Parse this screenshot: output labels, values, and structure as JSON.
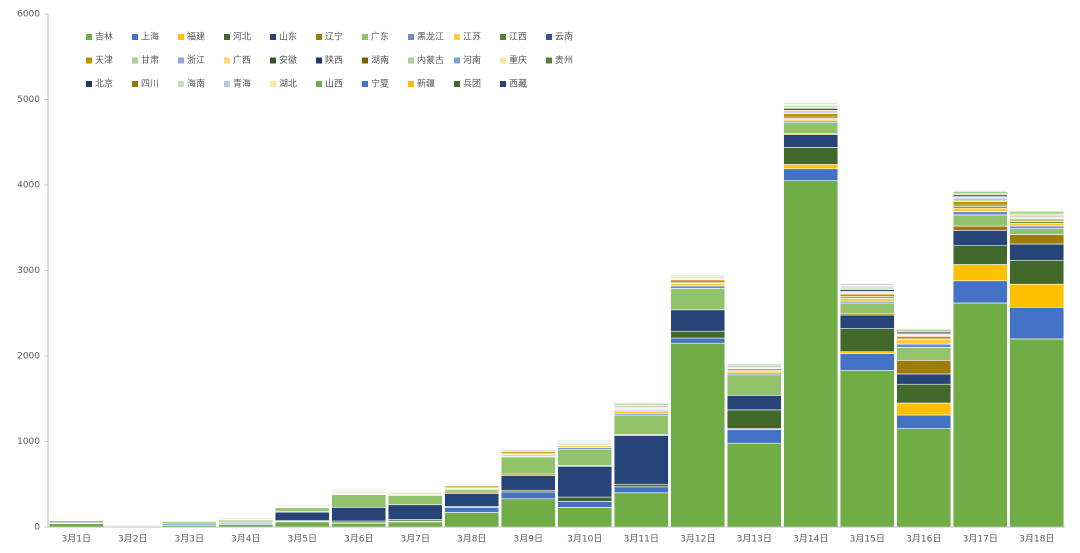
{
  "chart_data": {
    "type": "stacked_bar",
    "categories": [
      "3月1日",
      "3月2日",
      "3月3日",
      "3月4日",
      "3月5日",
      "3月6日",
      "3月7日",
      "3月8日",
      "3月9日",
      "3月10日",
      "3月11日",
      "3月12日",
      "3月13日",
      "3月14日",
      "3月15日",
      "3月16日",
      "3月17日",
      "3月18日"
    ],
    "ylim": [
      0,
      6000
    ],
    "yticks": [
      0,
      1000,
      2000,
      3000,
      4000,
      5000,
      6000
    ],
    "grid": false,
    "series": [
      {
        "name": "吉林",
        "color": "#70ad47",
        "values": [
          40,
          5,
          20,
          30,
          60,
          40,
          60,
          170,
          330,
          230,
          400,
          2150,
          980,
          4050,
          1830,
          1150,
          2620,
          2200
        ]
      },
      {
        "name": "上海",
        "color": "#4472c4",
        "values": [
          5,
          3,
          15,
          10,
          5,
          10,
          10,
          60,
          80,
          70,
          70,
          60,
          160,
          140,
          200,
          160,
          260,
          370
        ]
      },
      {
        "name": "福建",
        "color": "#ffc000",
        "values": [
          0,
          0,
          0,
          0,
          0,
          0,
          0,
          0,
          0,
          0,
          0,
          0,
          10,
          50,
          20,
          140,
          190,
          270
        ]
      },
      {
        "name": "河北",
        "color": "#43682b",
        "values": [
          0,
          0,
          0,
          10,
          10,
          20,
          20,
          10,
          20,
          50,
          30,
          80,
          220,
          200,
          270,
          220,
          220,
          280
        ]
      },
      {
        "name": "山东",
        "color": "#264478",
        "values": [
          10,
          0,
          10,
          10,
          100,
          160,
          170,
          150,
          170,
          360,
          570,
          250,
          170,
          150,
          160,
          120,
          180,
          190
        ]
      },
      {
        "name": "辽宁",
        "color": "#9e7c0c",
        "values": [
          0,
          0,
          0,
          0,
          10,
          0,
          0,
          20,
          20,
          10,
          10,
          0,
          0,
          10,
          20,
          160,
          50,
          110
        ]
      },
      {
        "name": "广东",
        "color": "#92c36b",
        "values": [
          20,
          10,
          20,
          20,
          40,
          150,
          110,
          30,
          200,
          190,
          230,
          250,
          240,
          130,
          120,
          150,
          130,
          70
        ]
      },
      {
        "name": "黑龙江",
        "color": "#698ed0",
        "values": [
          0,
          0,
          0,
          0,
          0,
          5,
          5,
          5,
          10,
          20,
          20,
          30,
          20,
          20,
          20,
          40,
          40,
          30
        ]
      },
      {
        "name": "江苏",
        "color": "#ffcd33",
        "values": [
          3,
          3,
          3,
          5,
          5,
          5,
          10,
          10,
          20,
          20,
          20,
          30,
          20,
          20,
          30,
          50,
          40,
          30
        ]
      },
      {
        "name": "江西",
        "color": "#548235",
        "values": [
          0,
          0,
          0,
          0,
          0,
          0,
          0,
          0,
          0,
          0,
          10,
          0,
          0,
          10,
          10,
          0,
          20,
          20
        ]
      },
      {
        "name": "云南",
        "color": "#2f5597",
        "values": [
          5,
          3,
          3,
          5,
          5,
          5,
          5,
          5,
          10,
          5,
          10,
          10,
          10,
          15,
          15,
          10,
          15,
          10
        ]
      },
      {
        "name": "天津",
        "color": "#bf9000",
        "values": [
          0,
          0,
          0,
          0,
          0,
          10,
          10,
          20,
          20,
          10,
          10,
          30,
          20,
          40,
          30,
          30,
          40,
          20
        ]
      },
      {
        "name": "甘肃",
        "color": "#a9d18e",
        "values": [
          3,
          0,
          3,
          3,
          3,
          10,
          10,
          10,
          10,
          10,
          10,
          5,
          10,
          10,
          10,
          5,
          20,
          10
        ]
      },
      {
        "name": "浙江",
        "color": "#8faadc",
        "values": [
          0,
          0,
          0,
          0,
          0,
          5,
          5,
          5,
          5,
          10,
          10,
          10,
          10,
          20,
          10,
          10,
          20,
          10
        ]
      },
      {
        "name": "广西",
        "color": "#ffd966",
        "values": [
          0,
          0,
          0,
          0,
          0,
          10,
          0,
          0,
          0,
          0,
          0,
          10,
          0,
          10,
          5,
          10,
          10,
          10
        ]
      },
      {
        "name": "安徽",
        "color": "#375623",
        "values": [
          0,
          0,
          0,
          0,
          0,
          0,
          0,
          0,
          0,
          5,
          10,
          0,
          0,
          0,
          5,
          5,
          10,
          10
        ]
      },
      {
        "name": "陕西",
        "color": "#203864",
        "values": [
          0,
          0,
          0,
          0,
          5,
          5,
          5,
          5,
          10,
          10,
          10,
          10,
          10,
          20,
          20,
          20,
          20,
          10
        ]
      },
      {
        "name": "湖南",
        "color": "#7f6000",
        "values": [
          0,
          0,
          0,
          0,
          0,
          0,
          5,
          5,
          5,
          5,
          5,
          5,
          5,
          10,
          10,
          10,
          10,
          10
        ]
      },
      {
        "name": "内蒙古",
        "color": "#a9d18e",
        "values": [
          3,
          0,
          3,
          10,
          10,
          10,
          5,
          5,
          5,
          10,
          20,
          10,
          20,
          20,
          20,
          20,
          30,
          30
        ]
      },
      {
        "name": "河南",
        "color": "#7f9fd6",
        "values": [
          0,
          0,
          0,
          0,
          0,
          5,
          5,
          5,
          5,
          5,
          10,
          10,
          5,
          10,
          10,
          10,
          10,
          10
        ]
      },
      {
        "name": "重庆",
        "color": "#ffe699",
        "values": [
          0,
          0,
          0,
          0,
          0,
          0,
          0,
          0,
          5,
          5,
          5,
          5,
          5,
          10,
          10,
          10,
          10,
          10
        ]
      },
      {
        "name": "贵州",
        "color": "#548235",
        "values": [
          0,
          0,
          0,
          0,
          0,
          0,
          0,
          0,
          0,
          0,
          0,
          0,
          0,
          5,
          5,
          5,
          5,
          5
        ]
      },
      {
        "name": "北京",
        "color": "#1f3864",
        "values": [
          5,
          3,
          3,
          3,
          3,
          5,
          5,
          5,
          5,
          5,
          5,
          5,
          5,
          10,
          10,
          5,
          5,
          5
        ]
      },
      {
        "name": "四川",
        "color": "#997300",
        "values": [
          0,
          0,
          0,
          0,
          0,
          0,
          0,
          0,
          0,
          5,
          5,
          5,
          5,
          5,
          5,
          5,
          5,
          5
        ]
      },
      {
        "name": "海南",
        "color": "#c5e0b4",
        "values": [
          0,
          0,
          0,
          0,
          0,
          5,
          5,
          5,
          5,
          5,
          5,
          5,
          5,
          10,
          5,
          5,
          5,
          5
        ]
      },
      {
        "name": "青海",
        "color": "#b4c7e7",
        "values": [
          0,
          0,
          0,
          0,
          0,
          0,
          5,
          5,
          5,
          5,
          5,
          5,
          5,
          5,
          5,
          5,
          5,
          5
        ]
      },
      {
        "name": "湖北",
        "color": "#ffe699",
        "values": [
          0,
          0,
          0,
          0,
          0,
          0,
          0,
          0,
          5,
          5,
          5,
          5,
          5,
          5,
          5,
          5,
          5,
          5
        ]
      },
      {
        "name": "山西",
        "color": "#70ad47",
        "values": [
          0,
          0,
          0,
          0,
          0,
          0,
          0,
          0,
          0,
          0,
          0,
          0,
          0,
          0,
          5,
          5,
          5,
          5
        ]
      },
      {
        "name": "宁夏",
        "color": "#4472c4",
        "values": [
          0,
          0,
          0,
          0,
          0,
          0,
          0,
          0,
          0,
          0,
          0,
          0,
          0,
          0,
          0,
          0,
          0,
          0
        ]
      },
      {
        "name": "新疆",
        "color": "#ffc000",
        "values": [
          0,
          0,
          0,
          0,
          0,
          0,
          0,
          0,
          0,
          0,
          0,
          0,
          0,
          5,
          5,
          5,
          5,
          5
        ]
      },
      {
        "name": "兵团",
        "color": "#43682b",
        "values": [
          0,
          0,
          0,
          0,
          0,
          0,
          0,
          0,
          0,
          0,
          0,
          0,
          0,
          0,
          0,
          0,
          0,
          0
        ]
      },
      {
        "name": "西藏",
        "color": "#264478",
        "values": [
          0,
          0,
          0,
          0,
          0,
          0,
          0,
          0,
          0,
          0,
          0,
          0,
          0,
          0,
          0,
          0,
          0,
          0
        ]
      }
    ]
  }
}
